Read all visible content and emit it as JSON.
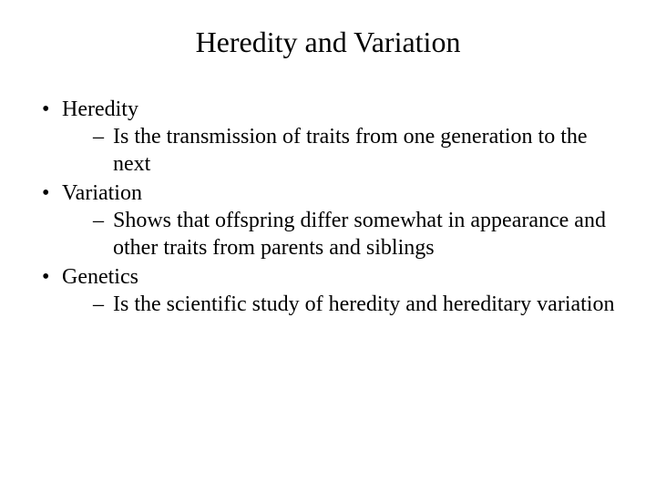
{
  "title": "Heredity and Variation",
  "bullets": [
    {
      "label": "Heredity",
      "sub": "Is the transmission of traits from one generation to the next"
    },
    {
      "label": "Variation",
      "sub": "Shows that offspring differ somewhat in appearance and other traits from parents and siblings"
    },
    {
      "label": "Genetics",
      "sub": "Is the scientific study of heredity and hereditary variation"
    }
  ]
}
